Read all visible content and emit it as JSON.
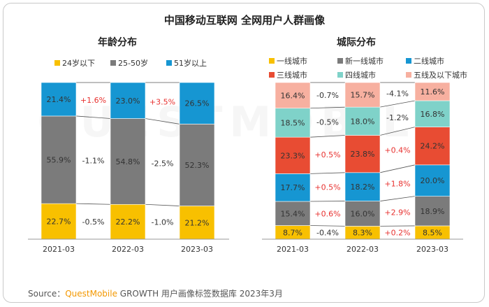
{
  "title": "中国移动互联网 全网用户人群画像",
  "source": {
    "prefix": "Source：",
    "brand": "QuestMobile",
    "suffix": " GROWTH 用户画像标签数据库 2023年3月"
  },
  "watermark": "QUESTMOBILE",
  "chart_data": [
    {
      "type": "bar",
      "stacked": true,
      "title": "年龄分布",
      "categories": [
        "2021-03",
        "2022-03",
        "2023-03"
      ],
      "unit": "%",
      "series": [
        {
          "name": "24岁以下",
          "color": "#f8c000",
          "values": [
            22.7,
            22.2,
            21.2
          ],
          "changes": [
            "-0.5%",
            "-1.0%"
          ]
        },
        {
          "name": "25-50岁",
          "color": "#7b7b7b",
          "values": [
            55.9,
            54.8,
            52.3
          ],
          "changes": [
            "-1.1%",
            "-2.5%"
          ]
        },
        {
          "name": "51岁以上",
          "color": "#1696d2",
          "values": [
            21.4,
            23.0,
            26.5
          ],
          "changes": [
            "+1.6%",
            "+3.5%"
          ]
        }
      ],
      "legend_position": "top"
    },
    {
      "type": "bar",
      "stacked": true,
      "title": "城际分布",
      "categories": [
        "2021-03",
        "2022-03",
        "2023-03"
      ],
      "unit": "%",
      "series": [
        {
          "name": "一线城市",
          "color": "#f8c000",
          "values": [
            8.7,
            8.3,
            8.5
          ],
          "changes": [
            "-0.4%",
            "+0.2%"
          ]
        },
        {
          "name": "新一线城市",
          "color": "#7b7b7b",
          "values": [
            15.4,
            16.0,
            18.9
          ],
          "changes": [
            "+0.6%",
            "+2.9%"
          ]
        },
        {
          "name": "二线城市",
          "color": "#1696d2",
          "values": [
            17.7,
            18.2,
            20.0
          ],
          "changes": [
            "+0.5%",
            "+1.8%"
          ]
        },
        {
          "name": "三线城市",
          "color": "#e84c33",
          "values": [
            23.3,
            23.8,
            24.2
          ],
          "changes": [
            "+0.5%",
            "+0.4%"
          ]
        },
        {
          "name": "四线城市",
          "color": "#7fd2c9",
          "values": [
            18.5,
            18.0,
            16.8
          ],
          "changes": [
            "-0.5%",
            "-1.2%"
          ]
        },
        {
          "name": "五线及以下城市",
          "color": "#f7b0a0",
          "values": [
            16.4,
            15.7,
            11.6
          ],
          "changes": [
            "-0.7%",
            "-4.1%"
          ]
        }
      ],
      "legend_position": "top"
    }
  ]
}
